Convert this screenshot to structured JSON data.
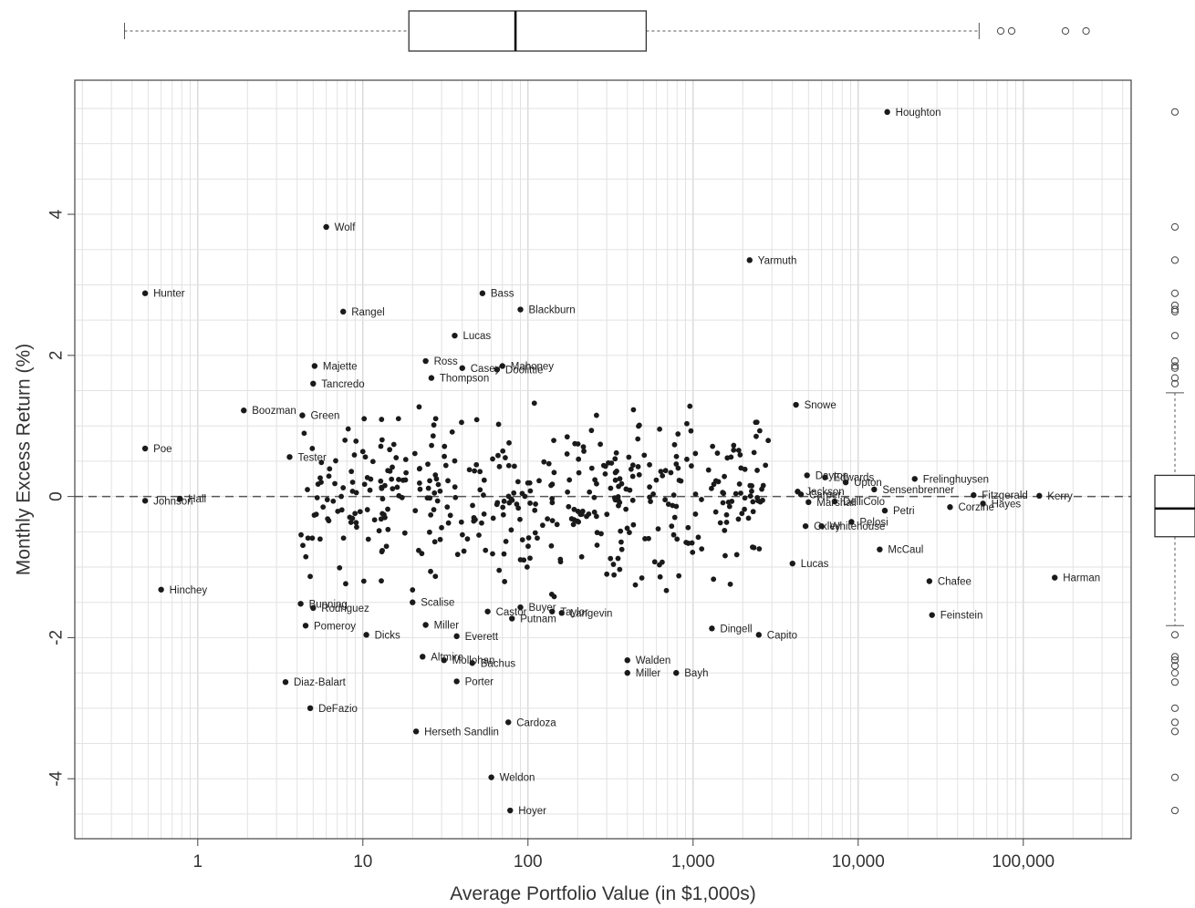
{
  "chart_data": {
    "type": "scatter",
    "title": "",
    "xlabel": "Average Portfolio Value (in $1,000s)",
    "ylabel": "Monthly Excess Return (%)",
    "x_scale": "log10",
    "xlim": [
      0.18,
      450000
    ],
    "ylim": [
      -4.85,
      5.9
    ],
    "x_ticks": [
      1,
      10,
      100,
      1000,
      10000,
      100000
    ],
    "x_tick_labels": [
      "1",
      "10",
      "100",
      "1,000",
      "10,000",
      "100,000"
    ],
    "y_ticks": [
      -4,
      -2,
      0,
      2,
      4
    ],
    "y_tick_labels": [
      "-4",
      "-2",
      "0",
      "2",
      "4"
    ],
    "grid": true,
    "reference_line": {
      "y": 0,
      "style": "dashed"
    },
    "labeled_points": [
      {
        "label": "Houghton",
        "x": 15000,
        "y": 5.45
      },
      {
        "label": "Wolf",
        "x": 6.0,
        "y": 3.82
      },
      {
        "label": "Yarmuth",
        "x": 2200,
        "y": 3.35
      },
      {
        "label": "Hunter",
        "x": 0.48,
        "y": 2.88
      },
      {
        "label": "Bass",
        "x": 53,
        "y": 2.88
      },
      {
        "label": "Rangel",
        "x": 7.6,
        "y": 2.62
      },
      {
        "label": "Blackburn",
        "x": 90,
        "y": 2.65
      },
      {
        "label": "Lucas",
        "x": 36,
        "y": 2.28
      },
      {
        "label": "Ross",
        "x": 24,
        "y": 1.92
      },
      {
        "label": "Majette",
        "x": 5.1,
        "y": 1.85
      },
      {
        "label": "Casey",
        "x": 40,
        "y": 1.82
      },
      {
        "label": "Mahoney",
        "x": 70,
        "y": 1.85
      },
      {
        "label": "Doolittle",
        "x": 65,
        "y": 1.8
      },
      {
        "label": "Thompson",
        "x": 26,
        "y": 1.68
      },
      {
        "label": "Tancredo",
        "x": 5.0,
        "y": 1.6
      },
      {
        "label": "Snowe",
        "x": 4200,
        "y": 1.3
      },
      {
        "label": "Boozman",
        "x": 1.9,
        "y": 1.22
      },
      {
        "label": "Green",
        "x": 4.3,
        "y": 1.15
      },
      {
        "label": "Poe",
        "x": 0.48,
        "y": 0.68
      },
      {
        "label": "Tester",
        "x": 3.6,
        "y": 0.56
      },
      {
        "label": "Dayton",
        "x": 4900,
        "y": 0.3
      },
      {
        "label": "Edwards",
        "x": 6300,
        "y": 0.27
      },
      {
        "label": "Upton",
        "x": 8400,
        "y": 0.2
      },
      {
        "label": "Frelinghuysen",
        "x": 22000,
        "y": 0.25
      },
      {
        "label": "Jackson",
        "x": 4300,
        "y": 0.07
      },
      {
        "label": "Carper",
        "x": 4500,
        "y": 0.03
      },
      {
        "label": "Sensenbrenner",
        "x": 12500,
        "y": 0.1
      },
      {
        "label": "Fitzgerald",
        "x": 50000,
        "y": 0.02
      },
      {
        "label": "Kerry",
        "x": 125000,
        "y": 0.01
      },
      {
        "label": "Johnson",
        "x": 0.48,
        "y": -0.06
      },
      {
        "label": "Hall",
        "x": 0.78,
        "y": -0.03
      },
      {
        "label": "Marshall",
        "x": 5000,
        "y": -0.08
      },
      {
        "label": "DelliColo",
        "x": 7200,
        "y": -0.07
      },
      {
        "label": "Corzine",
        "x": 36000,
        "y": -0.15
      },
      {
        "label": "Hayes",
        "x": 57000,
        "y": -0.1
      },
      {
        "label": "Petri",
        "x": 14500,
        "y": -0.2
      },
      {
        "label": "Pelosi",
        "x": 9100,
        "y": -0.36
      },
      {
        "label": "Oxley",
        "x": 4800,
        "y": -0.42
      },
      {
        "label": "Whitehouse",
        "x": 6000,
        "y": -0.42
      },
      {
        "label": "McCaul",
        "x": 13500,
        "y": -0.75
      },
      {
        "label": "Lucas",
        "x": 4000,
        "y": -0.95
      },
      {
        "label": "Chafee",
        "x": 27000,
        "y": -1.2
      },
      {
        "label": "Harman",
        "x": 155000,
        "y": -1.15
      },
      {
        "label": "Hinchey",
        "x": 0.6,
        "y": -1.32
      },
      {
        "label": "Bunning",
        "x": 4.2,
        "y": -1.52
      },
      {
        "label": "Rodriguez",
        "x": 5.0,
        "y": -1.58
      },
      {
        "label": "Scalise",
        "x": 20,
        "y": -1.5
      },
      {
        "label": "Buyer",
        "x": 90,
        "y": -1.57
      },
      {
        "label": "Castor",
        "x": 57,
        "y": -1.63
      },
      {
        "label": "Taylor",
        "x": 140,
        "y": -1.63
      },
      {
        "label": "Langevin",
        "x": 160,
        "y": -1.65
      },
      {
        "label": "Putnam",
        "x": 80,
        "y": -1.73
      },
      {
        "label": "Feinstein",
        "x": 28000,
        "y": -1.68
      },
      {
        "label": "Pomeroy",
        "x": 4.5,
        "y": -1.83
      },
      {
        "label": "Miller",
        "x": 24,
        "y": -1.82
      },
      {
        "label": "Dingell",
        "x": 1300,
        "y": -1.87
      },
      {
        "label": "Dicks",
        "x": 10.5,
        "y": -1.96
      },
      {
        "label": "Everett",
        "x": 37,
        "y": -1.98
      },
      {
        "label": "Capito",
        "x": 2500,
        "y": -1.96
      },
      {
        "label": "Altmire",
        "x": 23,
        "y": -2.27
      },
      {
        "label": "Mollohan",
        "x": 31,
        "y": -2.32
      },
      {
        "label": "Bachus",
        "x": 46,
        "y": -2.36
      },
      {
        "label": "Walden",
        "x": 400,
        "y": -2.32
      },
      {
        "label": "Miller",
        "x": 400,
        "y": -2.5
      },
      {
        "label": "Bayh",
        "x": 790,
        "y": -2.5
      },
      {
        "label": "Diaz-Balart",
        "x": 3.4,
        "y": -2.63
      },
      {
        "label": "Porter",
        "x": 37,
        "y": -2.62
      },
      {
        "label": "DeFazio",
        "x": 4.8,
        "y": -3.0
      },
      {
        "label": "Cardoza",
        "x": 76,
        "y": -3.2
      },
      {
        "label": "Herseth Sandlin",
        "x": 21,
        "y": -3.33
      },
      {
        "label": "Weldon",
        "x": 60,
        "y": -3.98
      },
      {
        "label": "Hoyer",
        "x": 78,
        "y": -4.45
      }
    ],
    "top_boxplot": {
      "variable": "Average Portfolio Value (in $1,000s)",
      "whisker_low": 0.36,
      "q1": 19,
      "median": 84,
      "q3": 520,
      "whisker_high": 54000,
      "outliers": [
        73000,
        85000,
        180000,
        240000
      ]
    },
    "right_boxplot": {
      "variable": "Monthly Excess Return (%)",
      "whisker_low": -1.83,
      "q1": -0.57,
      "median": -0.17,
      "q3": 0.3,
      "whisker_high": 1.47,
      "outliers_high": [
        5.45,
        3.82,
        3.35,
        2.88,
        2.71,
        2.65,
        2.62,
        2.28,
        1.92,
        1.85,
        1.82,
        1.68,
        1.6
      ],
      "outliers_low": [
        -1.96,
        -2.27,
        -2.32,
        -2.4,
        -2.5,
        -2.63,
        -3.0,
        -3.2,
        -3.33,
        -3.98,
        -4.45
      ]
    }
  }
}
